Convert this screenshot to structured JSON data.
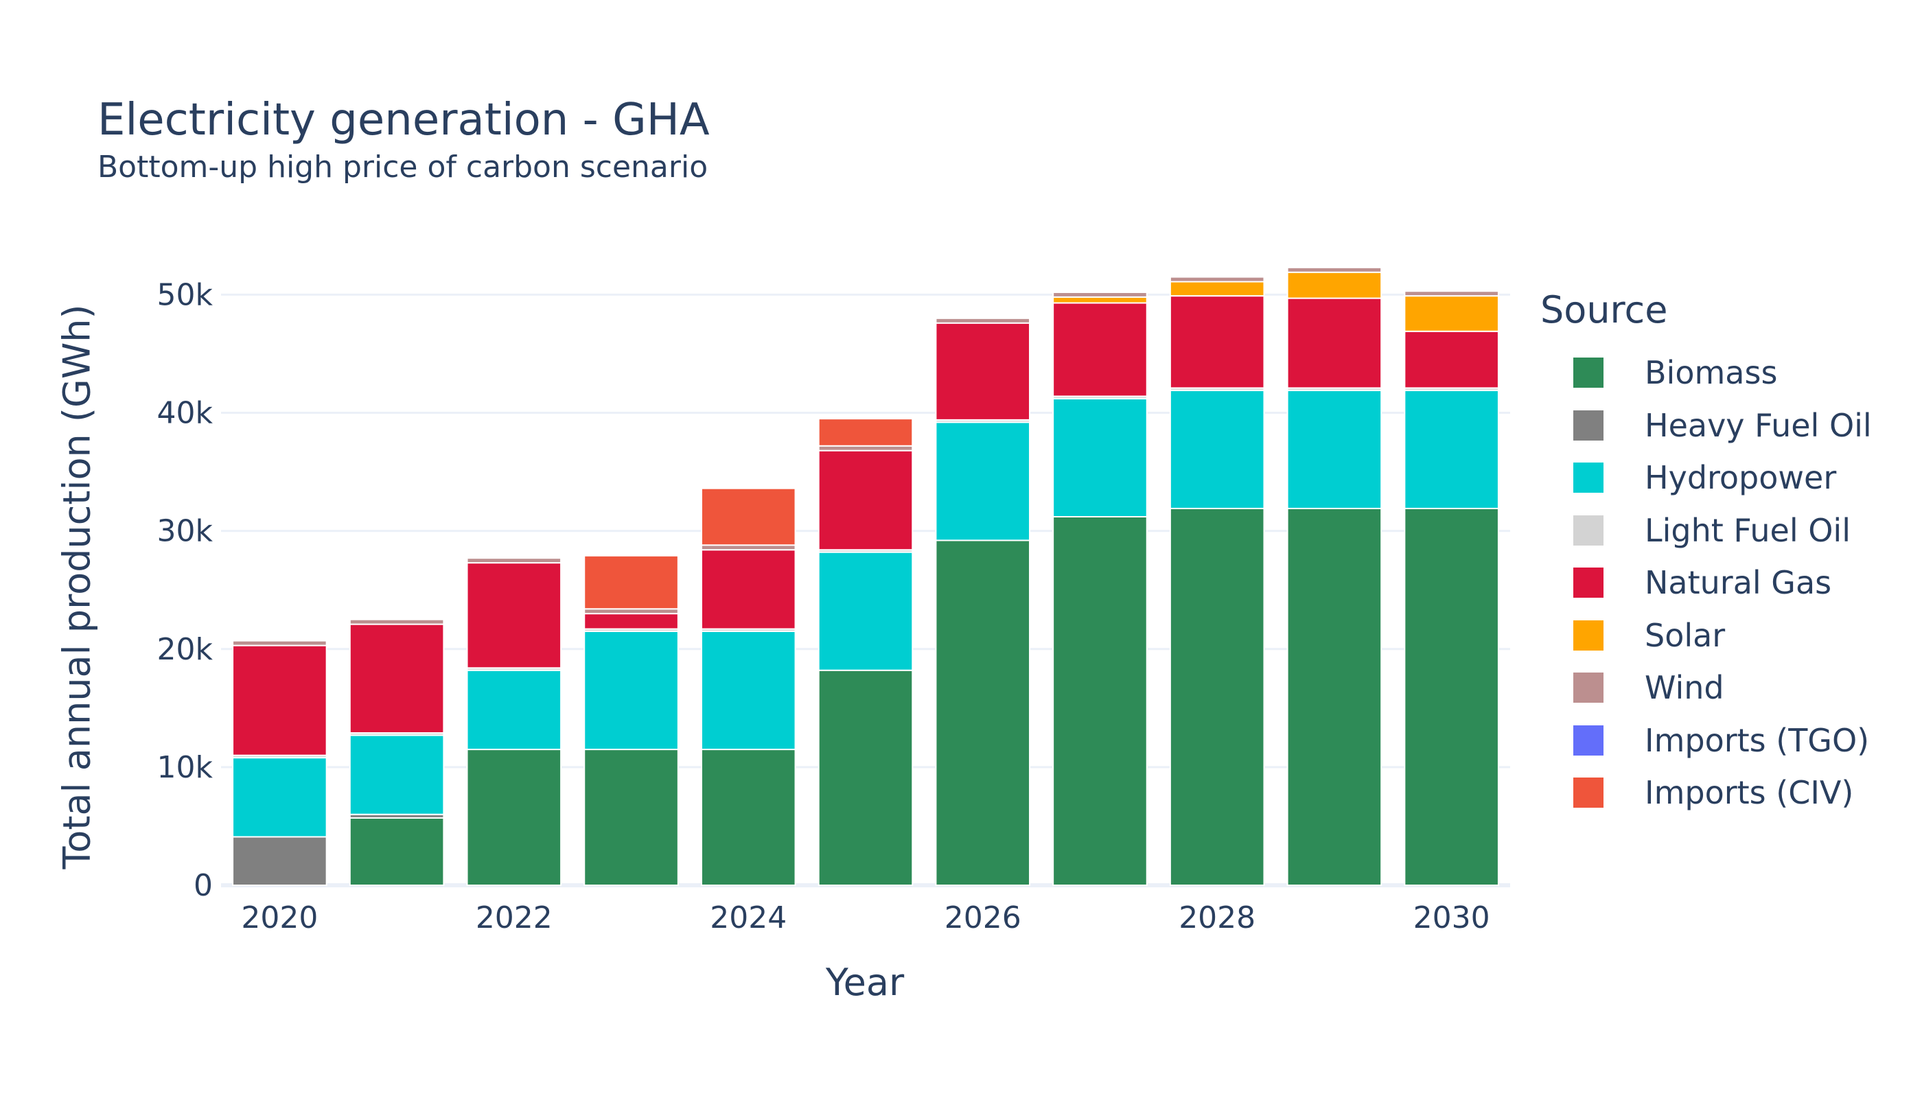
{
  "chart_data": {
    "type": "bar",
    "stacked": true,
    "title": "Electricity generation - GHA",
    "subtitle": "Bottom-up high price of carbon scenario",
    "xlabel": "Year",
    "ylabel": "Total annual production (GWh)",
    "legend_title": "Source",
    "legend_placement": "right",
    "grid": true,
    "ylim": [
      0,
      52000
    ],
    "yticks": [
      0,
      10000,
      20000,
      30000,
      40000,
      50000
    ],
    "ytick_labels": [
      "0",
      "10k",
      "20k",
      "30k",
      "40k",
      "50k"
    ],
    "x": [
      2020,
      2021,
      2022,
      2023,
      2024,
      2025,
      2026,
      2027,
      2028,
      2029,
      2030
    ],
    "xticks": [
      2020,
      2022,
      2024,
      2026,
      2028,
      2030
    ],
    "xtick_labels": [
      "2020",
      "2022",
      "2024",
      "2026",
      "2028",
      "2030"
    ],
    "series": [
      {
        "name": "Biomass",
        "color": "#2e8b57",
        "values": [
          0,
          5700,
          11500,
          11500,
          11500,
          18200,
          29200,
          31200,
          31900,
          31900,
          31900
        ]
      },
      {
        "name": "Heavy Fuel Oil",
        "color": "#808080",
        "values": [
          4100,
          300,
          0,
          0,
          0,
          0,
          0,
          0,
          0,
          0,
          0
        ]
      },
      {
        "name": "Hydropower",
        "color": "#00ced1",
        "values": [
          6700,
          6700,
          6700,
          10000,
          10000,
          10000,
          10000,
          10000,
          10000,
          10000,
          10000
        ]
      },
      {
        "name": "Light Fuel Oil",
        "color": "#d3d3d3",
        "values": [
          200,
          200,
          200,
          200,
          200,
          200,
          200,
          200,
          200,
          200,
          200
        ]
      },
      {
        "name": "Natural Gas",
        "color": "#dc143c",
        "values": [
          9300,
          9200,
          8900,
          1300,
          6700,
          8400,
          8200,
          7900,
          7800,
          7600,
          4800
        ]
      },
      {
        "name": "Solar",
        "color": "#ffa500",
        "values": [
          0,
          0,
          0,
          0,
          0,
          0,
          0,
          500,
          1200,
          2200,
          3000
        ]
      },
      {
        "name": "Wind",
        "color": "#bc8f8f",
        "values": [
          400,
          400,
          400,
          400,
          400,
          400,
          400,
          400,
          400,
          400,
          400
        ]
      },
      {
        "name": "Imports (TGO)",
        "color": "#636efa",
        "values": [
          0,
          0,
          0,
          0,
          0,
          0,
          0,
          0,
          0,
          0,
          0
        ]
      },
      {
        "name": "Imports (CIV)",
        "color": "#ef553b",
        "values": [
          0,
          0,
          0,
          4500,
          4800,
          2300,
          0,
          0,
          0,
          0,
          0
        ]
      }
    ]
  }
}
